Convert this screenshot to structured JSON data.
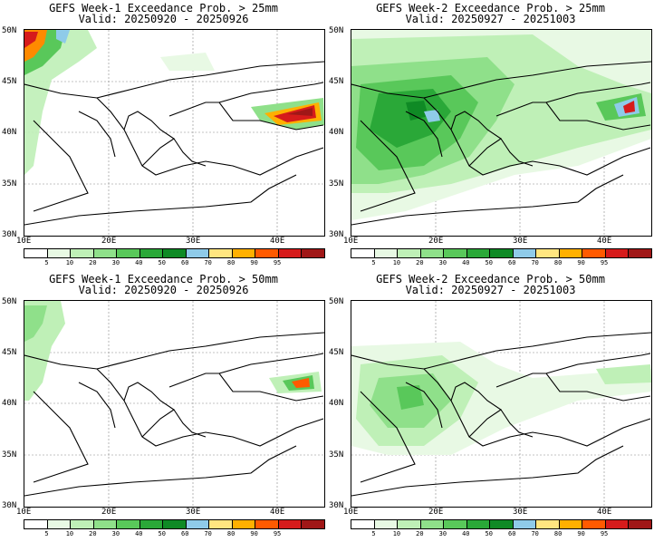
{
  "panels": [
    {
      "title1": "GEFS Week-1 Exceedance Prob. > 25mm",
      "title2": "Valid: 20250920 - 20250926"
    },
    {
      "title1": "GEFS Week-2 Exceedance Prob. > 25mm",
      "title2": "Valid: 20250927 - 20251003"
    },
    {
      "title1": "GEFS Week-1 Exceedance Prob. > 50mm",
      "title2": "Valid: 20250920 - 20250926"
    },
    {
      "title1": "GEFS Week-2 Exceedance Prob. > 50mm",
      "title2": "Valid: 20250927 - 20251003"
    }
  ],
  "lat_labels": [
    "50N",
    "45N",
    "40N",
    "35N",
    "30N"
  ],
  "lon_labels": [
    "10E",
    "20E",
    "30E",
    "40E"
  ],
  "colorbar": {
    "labels": [
      "5",
      "10",
      "20",
      "30",
      "40",
      "50",
      "60",
      "70",
      "80",
      "90",
      "95"
    ],
    "colors": [
      "#ffffff",
      "#e8f9e4",
      "#bff0b7",
      "#8fe08a",
      "#59c85a",
      "#2aa838",
      "#0f8a25",
      "#8fcbe9",
      "#ffe680",
      "#ffb000",
      "#ff5a00",
      "#d61b1b",
      "#a01717"
    ]
  }
}
